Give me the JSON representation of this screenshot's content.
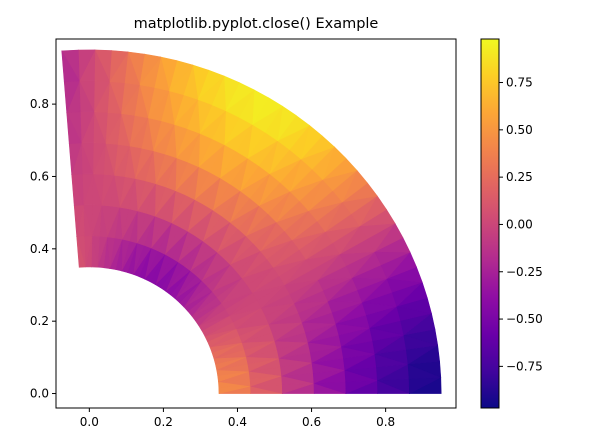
{
  "chart_data": {
    "type": "heatmap",
    "subtype": "tripcolor",
    "title": "matplotlib.pyplot.close() Example",
    "xlabel": "",
    "ylabel": "",
    "xlim": [
      -0.09,
      0.99
    ],
    "ylim": [
      -0.04,
      0.98
    ],
    "x_ticks": [
      0.0,
      0.2,
      0.4,
      0.6,
      0.8
    ],
    "x_tick_labels": [
      "0.0",
      "0.2",
      "0.4",
      "0.6",
      "0.8"
    ],
    "y_ticks": [
      0.0,
      0.2,
      0.4,
      0.6,
      0.8
    ],
    "y_tick_labels": [
      "0.0",
      "0.2",
      "0.4",
      "0.6",
      "0.8"
    ],
    "colormap": "plasma",
    "colorbar": {
      "placement": "right",
      "range": [
        -0.97,
        0.98
      ],
      "ticks": [
        -0.75,
        -0.5,
        -0.25,
        0.0,
        0.25,
        0.5,
        0.75
      ],
      "tick_labels": [
        "−0.75",
        "−0.50",
        "−0.25",
        "0.00",
        "0.25",
        "0.50",
        "0.75"
      ]
    },
    "domain": {
      "shape": "annular sector",
      "inner_radius": 0.35,
      "outer_radius": 0.95,
      "start_angle_rad": 0.0,
      "end_angle_rad": 1.6493,
      "n_radii": 8,
      "n_angles": 36
    },
    "z_function": "cos(r*3)*cos(theta*3)",
    "grid": false
  }
}
